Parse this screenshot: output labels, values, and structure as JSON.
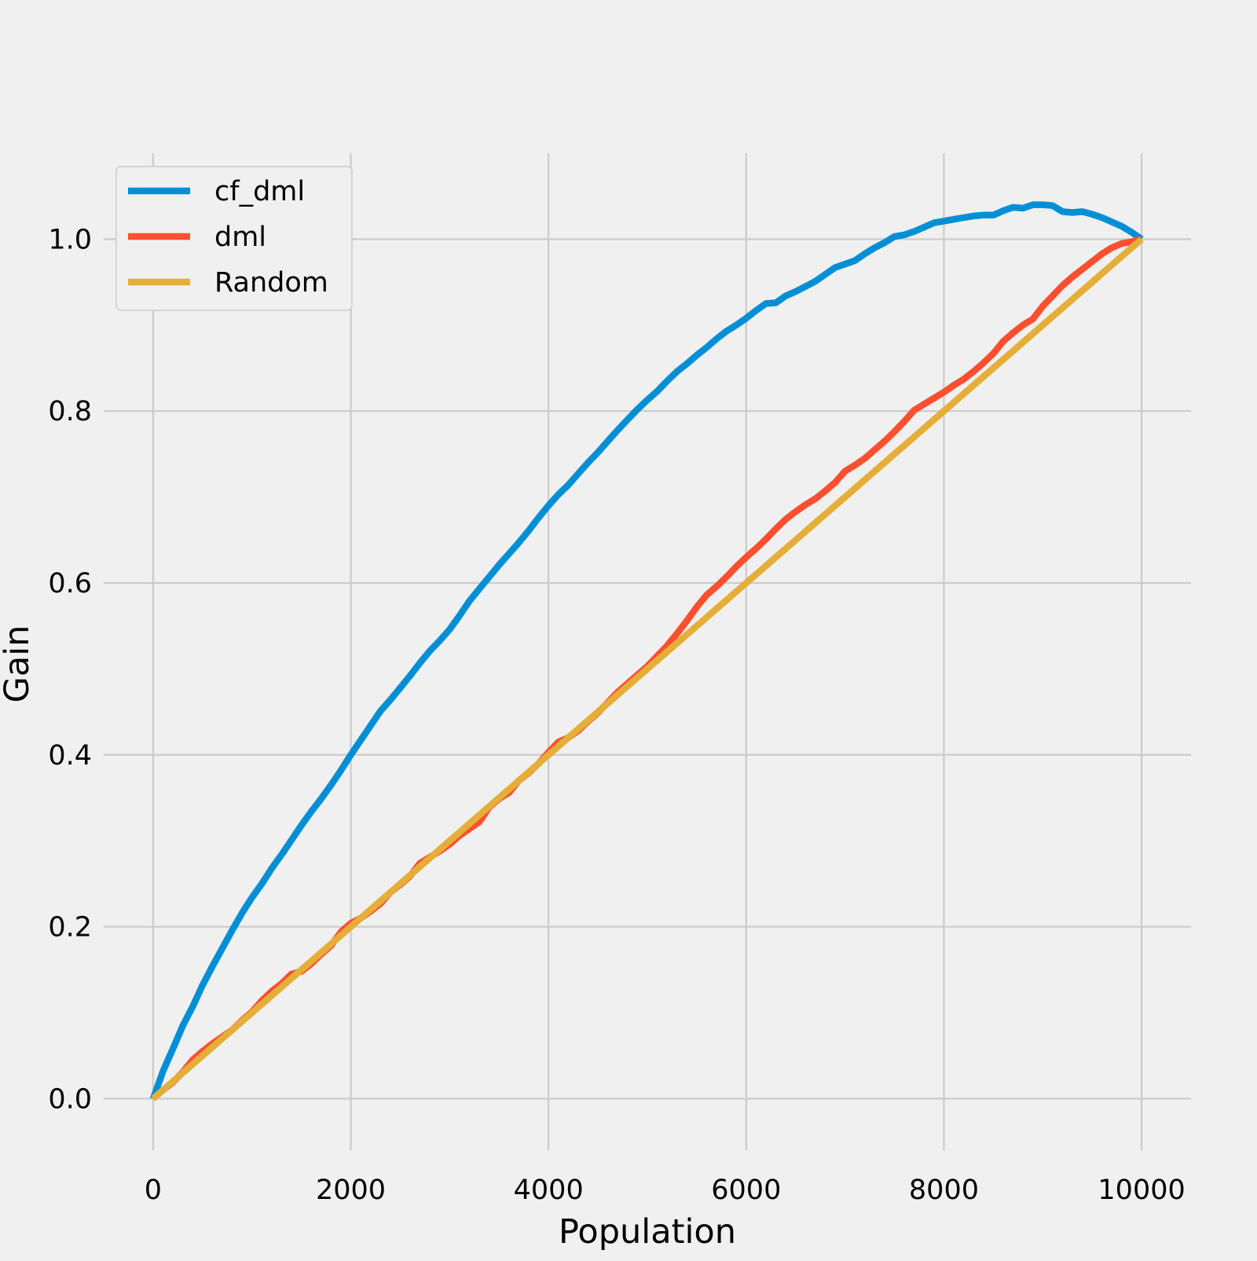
{
  "chart_data": {
    "type": "line",
    "title": "",
    "xlabel": "Population",
    "ylabel": "Gain",
    "xlim": [
      -500,
      10500
    ],
    "ylim": [
      -0.06,
      1.1
    ],
    "xticks": [
      0,
      2000,
      4000,
      6000,
      8000,
      10000
    ],
    "xtick_labels": [
      "0",
      "2000",
      "4000",
      "6000",
      "8000",
      "10000"
    ],
    "yticks": [
      0.0,
      0.2,
      0.4,
      0.6,
      0.8,
      1.0
    ],
    "ytick_labels": [
      "0.0",
      "0.2",
      "0.4",
      "0.6",
      "0.8",
      "1.0"
    ],
    "grid": true,
    "legend_position": "top-left",
    "series": [
      {
        "name": "cf_dml",
        "color": "#008fd5",
        "x": [
          0,
          100,
          200,
          300,
          400,
          500,
          600,
          700,
          800,
          900,
          1000,
          1100,
          1200,
          1300,
          1400,
          1500,
          1600,
          1700,
          1800,
          1900,
          2000,
          2100,
          2200,
          2300,
          2400,
          2500,
          2600,
          2700,
          2800,
          2900,
          3000,
          3100,
          3200,
          3300,
          3400,
          3500,
          3600,
          3700,
          3800,
          3900,
          4000,
          4100,
          4200,
          4300,
          4400,
          4500,
          4600,
          4700,
          4800,
          4900,
          5000,
          5100,
          5200,
          5300,
          5400,
          5500,
          5600,
          5700,
          5800,
          5900,
          6000,
          6100,
          6200,
          6300,
          6400,
          6500,
          6600,
          6700,
          6800,
          6900,
          7000,
          7100,
          7200,
          7300,
          7400,
          7500,
          7600,
          7700,
          7800,
          7900,
          8000,
          8100,
          8200,
          8300,
          8400,
          8500,
          8600,
          8700,
          8800,
          8900,
          9000,
          9100,
          9200,
          9300,
          9400,
          9500,
          9600,
          9700,
          9800,
          9900,
          10000
        ],
        "y": [
          0.0,
          0.032,
          0.058,
          0.085,
          0.107,
          0.132,
          0.154,
          0.175,
          0.196,
          0.216,
          0.234,
          0.25,
          0.268,
          0.284,
          0.301,
          0.318,
          0.334,
          0.349,
          0.365,
          0.382,
          0.4,
          0.417,
          0.434,
          0.451,
          0.464,
          0.478,
          0.492,
          0.507,
          0.521,
          0.533,
          0.546,
          0.562,
          0.579,
          0.593,
          0.607,
          0.621,
          0.634,
          0.647,
          0.661,
          0.676,
          0.69,
          0.703,
          0.714,
          0.727,
          0.74,
          0.752,
          0.765,
          0.778,
          0.79,
          0.802,
          0.813,
          0.823,
          0.835,
          0.846,
          0.855,
          0.865,
          0.874,
          0.884,
          0.893,
          0.9,
          0.908,
          0.917,
          0.925,
          0.926,
          0.934,
          0.939,
          0.945,
          0.951,
          0.959,
          0.967,
          0.971,
          0.975,
          0.983,
          0.99,
          0.996,
          1.003,
          1.005,
          1.009,
          1.014,
          1.019,
          1.021,
          1.023,
          1.025,
          1.027,
          1.028,
          1.028,
          1.033,
          1.037,
          1.036,
          1.04,
          1.04,
          1.039,
          1.032,
          1.031,
          1.032,
          1.029,
          1.025,
          1.02,
          1.015,
          1.008,
          1.0
        ]
      },
      {
        "name": "dml",
        "color": "#fc4f30",
        "x": [
          0,
          100,
          200,
          300,
          400,
          500,
          600,
          700,
          800,
          900,
          1000,
          1100,
          1200,
          1300,
          1400,
          1500,
          1600,
          1700,
          1800,
          1900,
          2000,
          2100,
          2200,
          2300,
          2400,
          2500,
          2600,
          2700,
          2800,
          2900,
          3000,
          3100,
          3200,
          3300,
          3400,
          3500,
          3600,
          3700,
          3800,
          3900,
          4000,
          4100,
          4200,
          4300,
          4400,
          4500,
          4600,
          4700,
          4800,
          4900,
          5000,
          5100,
          5200,
          5300,
          5400,
          5500,
          5600,
          5700,
          5800,
          5900,
          6000,
          6100,
          6200,
          6300,
          6400,
          6500,
          6600,
          6700,
          6800,
          6900,
          7000,
          7100,
          7200,
          7300,
          7400,
          7500,
          7600,
          7700,
          7800,
          7900,
          8000,
          8100,
          8200,
          8300,
          8400,
          8500,
          8600,
          8700,
          8800,
          8900,
          9000,
          9100,
          9200,
          9300,
          9400,
          9500,
          9600,
          9700,
          9800,
          9900,
          10000
        ],
        "y": [
          0.0,
          0.01,
          0.019,
          0.031,
          0.045,
          0.055,
          0.064,
          0.072,
          0.08,
          0.091,
          0.101,
          0.114,
          0.125,
          0.134,
          0.145,
          0.148,
          0.157,
          0.168,
          0.178,
          0.194,
          0.204,
          0.21,
          0.218,
          0.227,
          0.24,
          0.249,
          0.259,
          0.274,
          0.281,
          0.288,
          0.296,
          0.306,
          0.314,
          0.322,
          0.339,
          0.349,
          0.356,
          0.37,
          0.379,
          0.39,
          0.403,
          0.415,
          0.42,
          0.428,
          0.439,
          0.449,
          0.461,
          0.473,
          0.483,
          0.493,
          0.503,
          0.515,
          0.527,
          0.541,
          0.556,
          0.572,
          0.586,
          0.596,
          0.607,
          0.619,
          0.63,
          0.64,
          0.651,
          0.663,
          0.674,
          0.683,
          0.691,
          0.698,
          0.707,
          0.717,
          0.73,
          0.737,
          0.745,
          0.755,
          0.765,
          0.776,
          0.788,
          0.801,
          0.808,
          0.815,
          0.822,
          0.83,
          0.837,
          0.846,
          0.856,
          0.867,
          0.881,
          0.891,
          0.9,
          0.907,
          0.922,
          0.934,
          0.946,
          0.956,
          0.965,
          0.974,
          0.983,
          0.99,
          0.995,
          0.997,
          1.0
        ]
      },
      {
        "name": "Random",
        "color": "#e5ae38",
        "x": [
          0,
          10000
        ],
        "y": [
          0.0,
          1.0
        ]
      }
    ]
  }
}
